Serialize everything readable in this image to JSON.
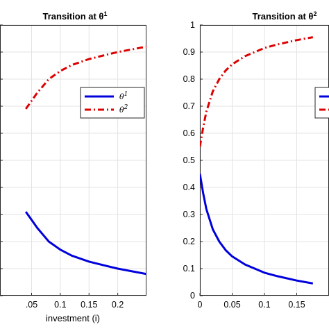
{
  "chart_data": [
    {
      "type": "line",
      "title": "Transition at θ",
      "title_sup": "1",
      "xlabel": "investment (i)",
      "ylabel": "",
      "xlim": [
        -0.005,
        0.25
      ],
      "ylim": [
        0,
        1
      ],
      "x_ticks": [
        0.05,
        0.1,
        0.15,
        0.2
      ],
      "x_tick_labels": [
        ".05",
        "0.1",
        "0.15",
        "0.2"
      ],
      "y_ticks": [
        0,
        0.1,
        0.2,
        0.3,
        0.4,
        0.5,
        0.6,
        0.7,
        0.8,
        0.9,
        1
      ],
      "y_tick_labels": [],
      "grid": true,
      "legend_position": "right",
      "series": [
        {
          "name": "θ",
          "name_sup": "1",
          "color": "#0000dd",
          "style": "solid",
          "x": [
            0.04,
            0.05,
            0.06,
            0.07,
            0.08,
            0.1,
            0.12,
            0.15,
            0.18,
            0.2,
            0.25
          ],
          "y": [
            0.31,
            0.28,
            0.25,
            0.225,
            0.2,
            0.17,
            0.148,
            0.126,
            0.11,
            0.1,
            0.08
          ]
        },
        {
          "name": "θ",
          "name_sup": "2",
          "color": "#dd0000",
          "style": "dashdot",
          "x": [
            0.04,
            0.05,
            0.06,
            0.07,
            0.08,
            0.1,
            0.12,
            0.15,
            0.18,
            0.2,
            0.25
          ],
          "y": [
            0.69,
            0.72,
            0.75,
            0.775,
            0.8,
            0.83,
            0.852,
            0.874,
            0.89,
            0.9,
            0.92
          ]
        }
      ]
    },
    {
      "type": "line",
      "title": "Transition at θ",
      "title_sup": "2",
      "xlabel": "",
      "ylabel": "",
      "xlim": [
        0,
        0.2
      ],
      "ylim": [
        0,
        1
      ],
      "x_ticks": [
        0,
        0.05,
        0.1,
        0.15
      ],
      "x_tick_labels": [
        "0",
        "0.05",
        "0.1",
        "0.15"
      ],
      "y_ticks": [
        0,
        0.1,
        0.2,
        0.3,
        0.4,
        0.5,
        0.6,
        0.7,
        0.8,
        0.9,
        1
      ],
      "y_tick_labels": [
        "0",
        "0.1",
        "0.2",
        "0.3",
        "0.4",
        "0.5",
        "0.6",
        "0.7",
        "0.8",
        "0.9",
        "1"
      ],
      "grid": true,
      "legend_position": "right",
      "series": [
        {
          "name": "",
          "color": "#0000dd",
          "style": "solid",
          "x": [
            0,
            0.005,
            0.01,
            0.02,
            0.03,
            0.04,
            0.05,
            0.07,
            0.1,
            0.12,
            0.15,
            0.175
          ],
          "y": [
            0.45,
            0.38,
            0.32,
            0.245,
            0.2,
            0.168,
            0.145,
            0.115,
            0.085,
            0.072,
            0.056,
            0.045
          ]
        },
        {
          "name": "",
          "color": "#dd0000",
          "style": "dashdot",
          "x": [
            0,
            0.005,
            0.01,
            0.02,
            0.03,
            0.04,
            0.05,
            0.07,
            0.1,
            0.12,
            0.15,
            0.175
          ],
          "y": [
            0.55,
            0.62,
            0.68,
            0.755,
            0.8,
            0.832,
            0.855,
            0.885,
            0.915,
            0.928,
            0.944,
            0.955
          ]
        }
      ]
    }
  ]
}
